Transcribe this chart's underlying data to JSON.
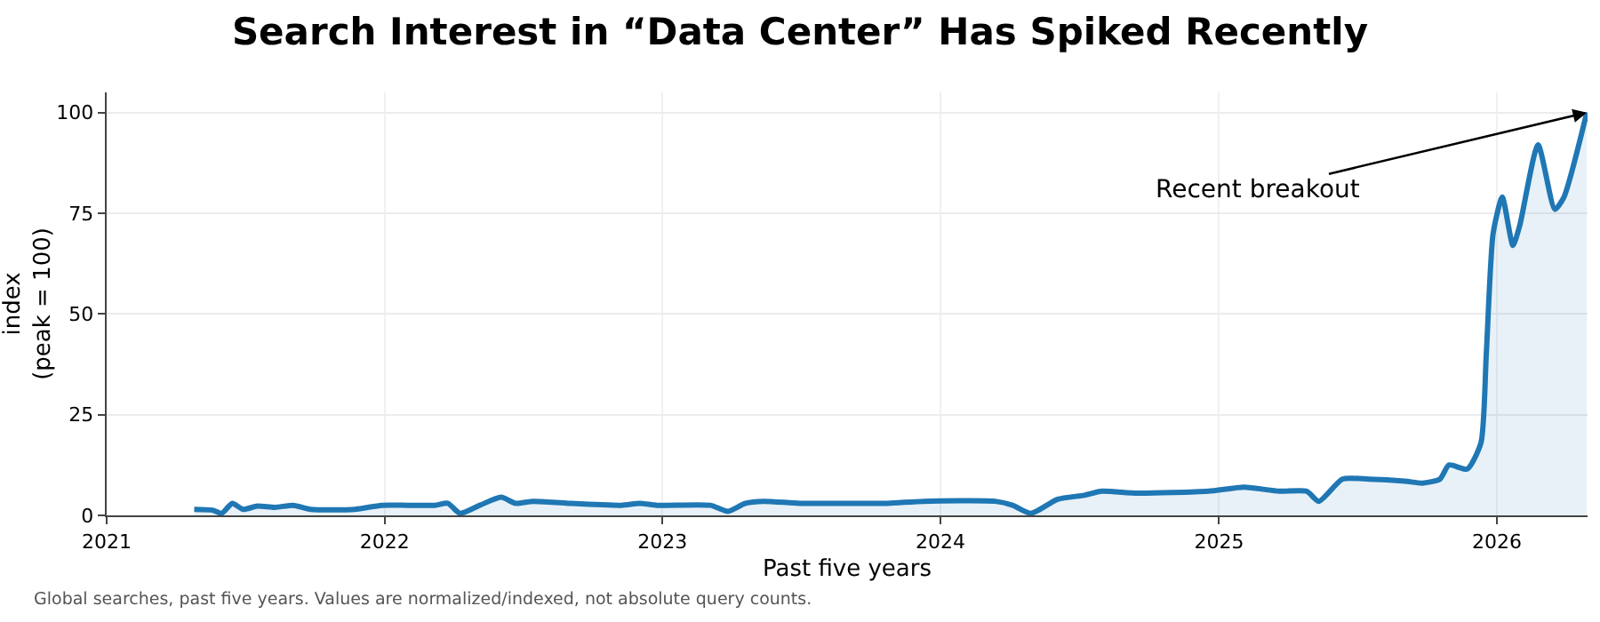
{
  "chart_data": {
    "type": "area",
    "title": "Search Interest in “Data Center” Has Spiked Recently",
    "xlabel": "Past five years",
    "ylabel": "index\n(peak = 100)",
    "x": [
      "2021-04-26",
      "2021-05-20",
      "2021-06-01",
      "2021-06-15",
      "2021-06-29",
      "2021-07-18",
      "2021-08-10",
      "2021-09-03",
      "2021-09-26",
      "2021-11-23",
      "2021-12-28",
      "2022-02-01",
      "2022-03-08",
      "2022-03-25",
      "2022-04-10",
      "2022-05-06",
      "2022-06-03",
      "2022-06-22",
      "2022-07-15",
      "2022-08-30",
      "2022-11-08",
      "2022-12-02",
      "2022-12-25",
      "2023-03-05",
      "2023-03-28",
      "2023-04-20",
      "2023-05-14",
      "2023-06-30",
      "2023-09-07",
      "2023-10-24",
      "2023-12-10",
      "2024-03-13",
      "2024-04-05",
      "2024-04-29",
      "2024-06-03",
      "2024-07-08",
      "2024-07-31",
      "2024-09-16",
      "2024-12-18",
      "2025-02-03",
      "2025-03-21",
      "2025-04-26",
      "2025-05-12",
      "2025-06-12",
      "2025-07-17",
      "2025-09-02",
      "2025-09-25",
      "2025-10-18",
      "2025-10-30",
      "2025-11-23",
      "2025-12-11",
      "2025-12-18",
      "2025-12-27",
      "2026-01-08",
      "2026-01-22",
      "2026-01-31",
      "2026-02-24",
      "2026-03-18",
      "2026-03-30",
      "2026-04-29"
    ],
    "series": [
      {
        "color": "#1f77b4",
        "values": [
          1.5,
          1.3,
          0.5,
          3,
          1.5,
          2.3,
          2,
          2.5,
          1.5,
          1.5,
          2.5,
          2.5,
          2.5,
          3,
          0.5,
          2.5,
          4.5,
          3,
          3.5,
          3,
          2.5,
          3,
          2.5,
          2.5,
          1,
          3,
          3.5,
          3,
          3,
          3,
          3.5,
          3.5,
          2.5,
          0.5,
          4,
          5,
          6,
          5.5,
          6,
          7,
          6,
          6,
          3.5,
          9,
          9,
          8.5,
          8,
          9,
          12.5,
          11.5,
          18,
          40,
          70,
          79,
          67,
          72,
          92,
          76,
          79,
          100
        ]
      }
    ],
    "xlim": [
      "2021-01-01",
      "2026-04-30"
    ],
    "xticks": [
      {
        "value": "2021-01-01",
        "label": "2021"
      },
      {
        "value": "2022-01-01",
        "label": "2022"
      },
      {
        "value": "2023-01-01",
        "label": "2023"
      },
      {
        "value": "2024-01-01",
        "label": "2024"
      },
      {
        "value": "2025-01-01",
        "label": "2025"
      },
      {
        "value": "2026-01-01",
        "label": "2026"
      }
    ],
    "ylim": [
      0,
      105
    ],
    "yticks": [
      0,
      25,
      50,
      75,
      100
    ],
    "grid": true,
    "marker": "none",
    "line_style": "solid",
    "annotations": [
      {
        "text": "Recent breakout",
        "x": "2026-04-29",
        "y": 100
      },
      "Global searches, past five years. Values are normalized/indexed, not absolute query counts."
    ]
  }
}
